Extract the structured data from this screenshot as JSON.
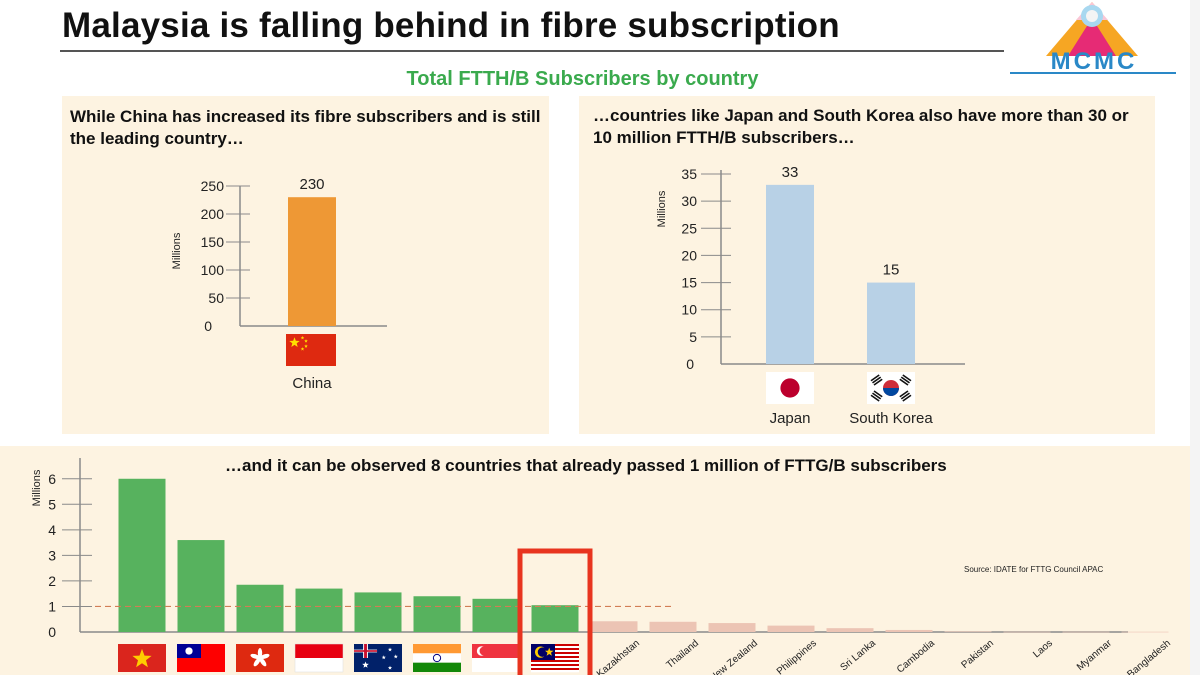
{
  "header": {
    "title": "Malaysia is falling behind in fibre subscription",
    "logo_text": "MCMC",
    "subtitle": "Total FTTH/B Subscribers by country"
  },
  "colors": {
    "china_bar": "#ee9835",
    "japan_korea_bar": "#b8d1e6",
    "passed_bar": "#57b25e",
    "below_bar": "#ecc4b4",
    "threshold_line": "#d27d56",
    "highlight": "#e8341f",
    "panel_bg": "#fdf3e1",
    "subtitle": "#3aaa4d"
  },
  "panels": {
    "left_heading": "While China has increased its fibre subscribers and is still the leading country…",
    "right_heading": "…countries like Japan and South Korea also have more than 30 or 10 million FTTH/B subscribers…",
    "bottom_heading": "…and it can be observed 8 countries that already passed 1 million of FTTG/B subscribers",
    "source": "Source: IDATE for FTTG Council APAC"
  },
  "chart_data": [
    {
      "type": "bar",
      "title": "",
      "ylabel": "Millions",
      "categories": [
        "China"
      ],
      "values": [
        230
      ],
      "value_labels": [
        "230"
      ],
      "ylim": [
        0,
        250
      ],
      "yticks": [
        "0",
        "50",
        "100",
        "150",
        "200",
        "250"
      ],
      "flags": [
        "china-flag"
      ]
    },
    {
      "type": "bar",
      "title": "",
      "ylabel": "Millions",
      "categories": [
        "Japan",
        "South Korea"
      ],
      "values": [
        33,
        15
      ],
      "value_labels": [
        "33",
        "15"
      ],
      "ylim": [
        0,
        35
      ],
      "yticks": [
        "0",
        "5",
        "10",
        "15",
        "20",
        "25",
        "30",
        "35"
      ],
      "flags": [
        "japan-flag",
        "south-korea-flag"
      ]
    },
    {
      "type": "bar",
      "title": "",
      "ylabel": "Millions",
      "ylim": [
        0,
        6.5
      ],
      "yticks": [
        "0",
        "1",
        "2",
        "3",
        "4",
        "5",
        "6"
      ],
      "threshold": 1,
      "highlighted_index": 7,
      "flag_countries": [
        "vietnam-flag",
        "taiwan-flag",
        "hong-kong-flag",
        "indonesia-flag",
        "australia-flag",
        "india-flag",
        "singapore-flag",
        "malaysia-flag"
      ],
      "labeled_categories": [
        "Kazakhstan",
        "Thailand",
        "New Zealand",
        "Philippines",
        "Sri Lanka",
        "Cambodia",
        "Pakistan",
        "Laos",
        "Myanmar",
        "Bangladesh"
      ],
      "values": [
        6.0,
        3.6,
        1.85,
        1.7,
        1.55,
        1.4,
        1.3,
        1.05,
        0.42,
        0.4,
        0.35,
        0.25,
        0.15,
        0.08,
        0.02,
        0.01,
        0.01,
        0.01
      ]
    }
  ]
}
